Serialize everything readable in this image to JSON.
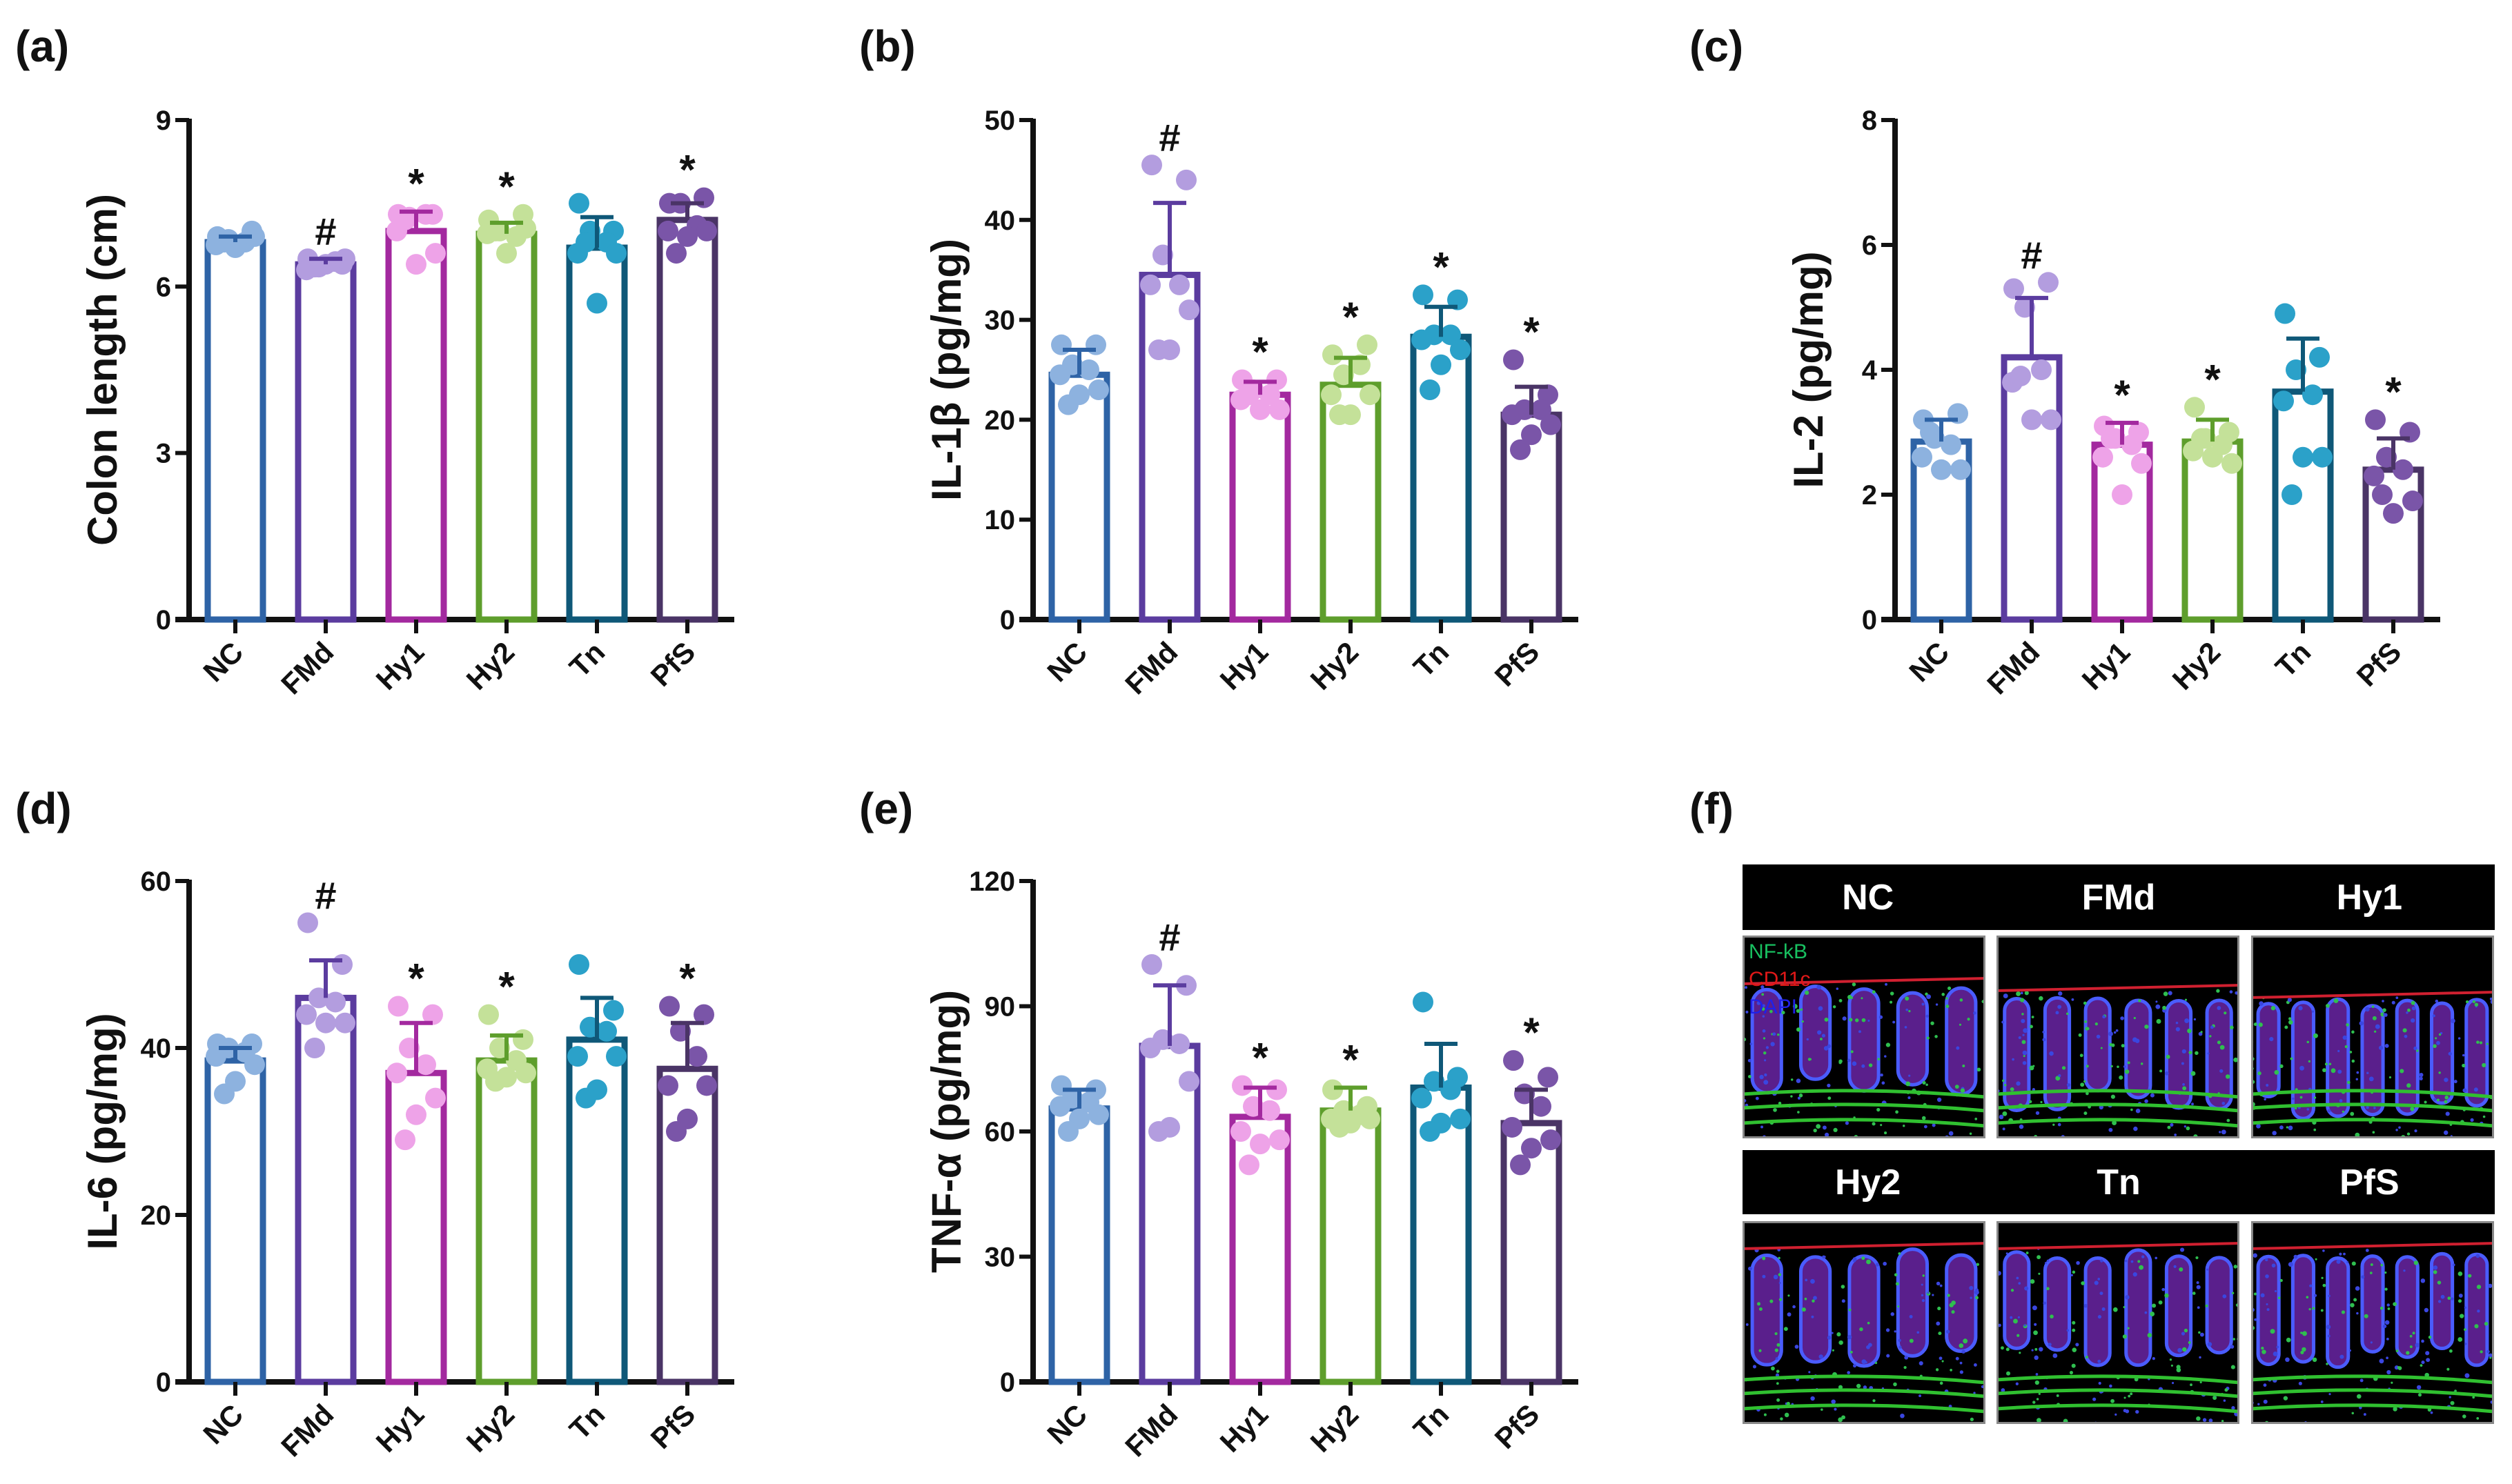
{
  "panel_labels": [
    "(a)",
    "(b)",
    "(c)",
    "(d)",
    "(e)",
    "(f)"
  ],
  "colors": {
    "NC": {
      "bar": "#2e63a6",
      "point": "#8db2df"
    },
    "FMd": {
      "bar": "#5b3c9f",
      "point": "#b39ddf"
    },
    "Hy1": {
      "bar": "#a3299f",
      "point": "#eea3e8"
    },
    "Hy2": {
      "bar": "#5e9e2c",
      "point": "#c4e199"
    },
    "Tn": {
      "bar": "#0f5878",
      "point": "#2ba1c9"
    },
    "PfS": {
      "bar": "#4a3466",
      "point": "#7a55a8"
    }
  },
  "chart_data": [
    {
      "type": "bar",
      "title": "",
      "xlabel": "",
      "ylabel": "Colon length (cm)",
      "ylim": [
        0,
        9
      ],
      "yticks": [
        "0",
        "3",
        "6",
        "9"
      ],
      "categories": [
        "NC",
        "FMd",
        "Hy1",
        "Hy2",
        "Tn",
        "PfS"
      ],
      "values": [
        6.8,
        6.4,
        7.0,
        6.95,
        6.7,
        7.2
      ],
      "error_upper": [
        6.9,
        6.5,
        7.35,
        7.15,
        7.25,
        7.5
      ],
      "annotations": [
        "",
        "#",
        "*",
        "*",
        "",
        "*"
      ],
      "points": [
        [
          6.9,
          7.0,
          6.85,
          6.8,
          6.75,
          6.9,
          6.7,
          6.8
        ],
        [
          6.5,
          6.4,
          6.35,
          6.45,
          6.3,
          6.5,
          6.4,
          6.35
        ],
        [
          7.3,
          7.3,
          7.25,
          7.3,
          7.0,
          6.6,
          6.4,
          7.2
        ],
        [
          7.2,
          7.3,
          7.0,
          6.9,
          6.95,
          7.05,
          6.6,
          7.0
        ],
        [
          7.5,
          7.0,
          7.0,
          6.8,
          6.6,
          6.6,
          5.7,
          6.8
        ],
        [
          7.5,
          7.6,
          7.5,
          7.1,
          7.0,
          7.0,
          6.9,
          6.6
        ]
      ]
    },
    {
      "type": "bar",
      "title": "",
      "xlabel": "",
      "ylabel": "IL-1β (pg/mg)",
      "ylim": [
        0,
        50
      ],
      "yticks": [
        "0",
        "10",
        "20",
        "30",
        "40",
        "50"
      ],
      "categories": [
        "NC",
        "FMd",
        "Hy1",
        "Hy2",
        "Tn",
        "PfS"
      ],
      "values": [
        24.5,
        34.5,
        22.5,
        23.5,
        28.3,
        20.5
      ],
      "error_upper": [
        27.0,
        41.7,
        23.8,
        26.2,
        31.3,
        23.3
      ],
      "annotations": [
        "",
        "#",
        "*",
        "*",
        "*",
        "*"
      ],
      "points": [
        [
          27.5,
          27.5,
          25.5,
          25,
          24.5,
          23,
          22.5,
          21.5
        ],
        [
          45.5,
          44,
          36.5,
          33.5,
          33.5,
          31,
          27,
          27
        ],
        [
          24,
          24,
          23,
          22.5,
          22,
          21,
          21,
          22.5
        ],
        [
          26.5,
          27.5,
          24.5,
          25.5,
          22.5,
          22.5,
          20.5,
          20.5
        ],
        [
          32.5,
          32,
          28.5,
          28.5,
          28,
          27,
          25.5,
          23
        ],
        [
          26,
          22.5,
          21,
          21,
          20.5,
          19.5,
          18.5,
          17
        ]
      ]
    },
    {
      "type": "bar",
      "title": "",
      "xlabel": "",
      "ylabel": "IL-2 (pg/mg)",
      "ylim": [
        0,
        8
      ],
      "yticks": [
        "0",
        "2",
        "4",
        "6",
        "8"
      ],
      "categories": [
        "NC",
        "FMd",
        "Hy1",
        "Hy2",
        "Tn",
        "PfS"
      ],
      "values": [
        2.85,
        4.2,
        2.8,
        2.85,
        3.65,
        2.4
      ],
      "error_upper": [
        3.2,
        5.15,
        3.15,
        3.2,
        4.5,
        2.9
      ],
      "annotations": [
        "",
        "#",
        "*",
        "*",
        "",
        "*"
      ],
      "points": [
        [
          3.2,
          3.3,
          2.9,
          2.8,
          2.6,
          2.4,
          2.4,
          3.0
        ],
        [
          5.3,
          5.4,
          5.0,
          4.0,
          3.8,
          3.2,
          3.2,
          3.9
        ],
        [
          3.1,
          3.0,
          2.9,
          2.8,
          2.6,
          2.5,
          2.0,
          2.9
        ],
        [
          3.4,
          3.0,
          2.9,
          2.8,
          2.7,
          2.5,
          2.6,
          2.9
        ],
        [
          4.9,
          4.2,
          4.0,
          3.6,
          3.5,
          2.6,
          2.6,
          2.0
        ],
        [
          3.2,
          3.0,
          2.6,
          2.4,
          2.3,
          1.9,
          1.7,
          2.0
        ]
      ]
    },
    {
      "type": "bar",
      "title": "",
      "xlabel": "",
      "ylabel": "IL-6 (pg/mg)",
      "ylim": [
        0,
        60
      ],
      "yticks": [
        "0",
        "20",
        "40",
        "60"
      ],
      "categories": [
        "NC",
        "FMd",
        "Hy1",
        "Hy2",
        "Tn",
        "PfS"
      ],
      "values": [
        38.5,
        46,
        37,
        38.5,
        41,
        37.5
      ],
      "error_upper": [
        40,
        50.5,
        43,
        41.5,
        46,
        43
      ],
      "annotations": [
        "",
        "#",
        "*",
        "*",
        "",
        "*"
      ],
      "points": [
        [
          40.5,
          40.5,
          40,
          39.5,
          39,
          38,
          36,
          34.5
        ],
        [
          55,
          50,
          46,
          45.5,
          44,
          43,
          43,
          40
        ],
        [
          45,
          44,
          40,
          38,
          37,
          34,
          32,
          29
        ],
        [
          44,
          41,
          40,
          38.5,
          37.5,
          37,
          36.5,
          36
        ],
        [
          50,
          44.5,
          42.5,
          42,
          39,
          39,
          35,
          34
        ],
        [
          45,
          44,
          42,
          39,
          35.5,
          35.5,
          31.5,
          30
        ]
      ]
    },
    {
      "type": "bar",
      "title": "",
      "xlabel": "",
      "ylabel": "TNF-α (pg/mg)",
      "ylim": [
        0,
        120
      ],
      "yticks": [
        "0",
        "30",
        "60",
        "90",
        "120"
      ],
      "categories": [
        "NC",
        "FMd",
        "Hy1",
        "Hy2",
        "Tn",
        "PfS"
      ],
      "values": [
        65.5,
        80.5,
        63.5,
        65,
        70.5,
        62
      ],
      "error_upper": [
        70,
        95,
        70.5,
        70.5,
        81,
        70
      ],
      "annotations": [
        "",
        "#",
        "*",
        "*",
        "",
        "*"
      ],
      "points": [
        [
          71,
          70,
          68,
          67,
          66,
          64,
          63,
          60
        ],
        [
          100,
          95,
          82,
          81,
          80,
          72,
          61,
          60
        ],
        [
          71,
          70,
          66,
          65,
          60,
          58,
          57,
          52
        ],
        [
          70,
          66,
          65,
          64,
          63,
          63,
          62,
          61
        ],
        [
          91,
          73,
          72,
          70,
          68,
          63,
          62,
          60
        ],
        [
          77,
          73,
          69,
          66,
          61,
          58,
          56,
          52
        ]
      ]
    }
  ],
  "panel_f": {
    "row1": [
      "NC",
      "FMd",
      "Hy1"
    ],
    "row2": [
      "Hy2",
      "Tn",
      "PfS"
    ],
    "stains": [
      {
        "label": "NF-kB",
        "color": "#18c060"
      },
      {
        "label": "CD11c",
        "color": "#e01818"
      },
      {
        "label": "DAPI",
        "color": "#2020e8"
      }
    ]
  }
}
